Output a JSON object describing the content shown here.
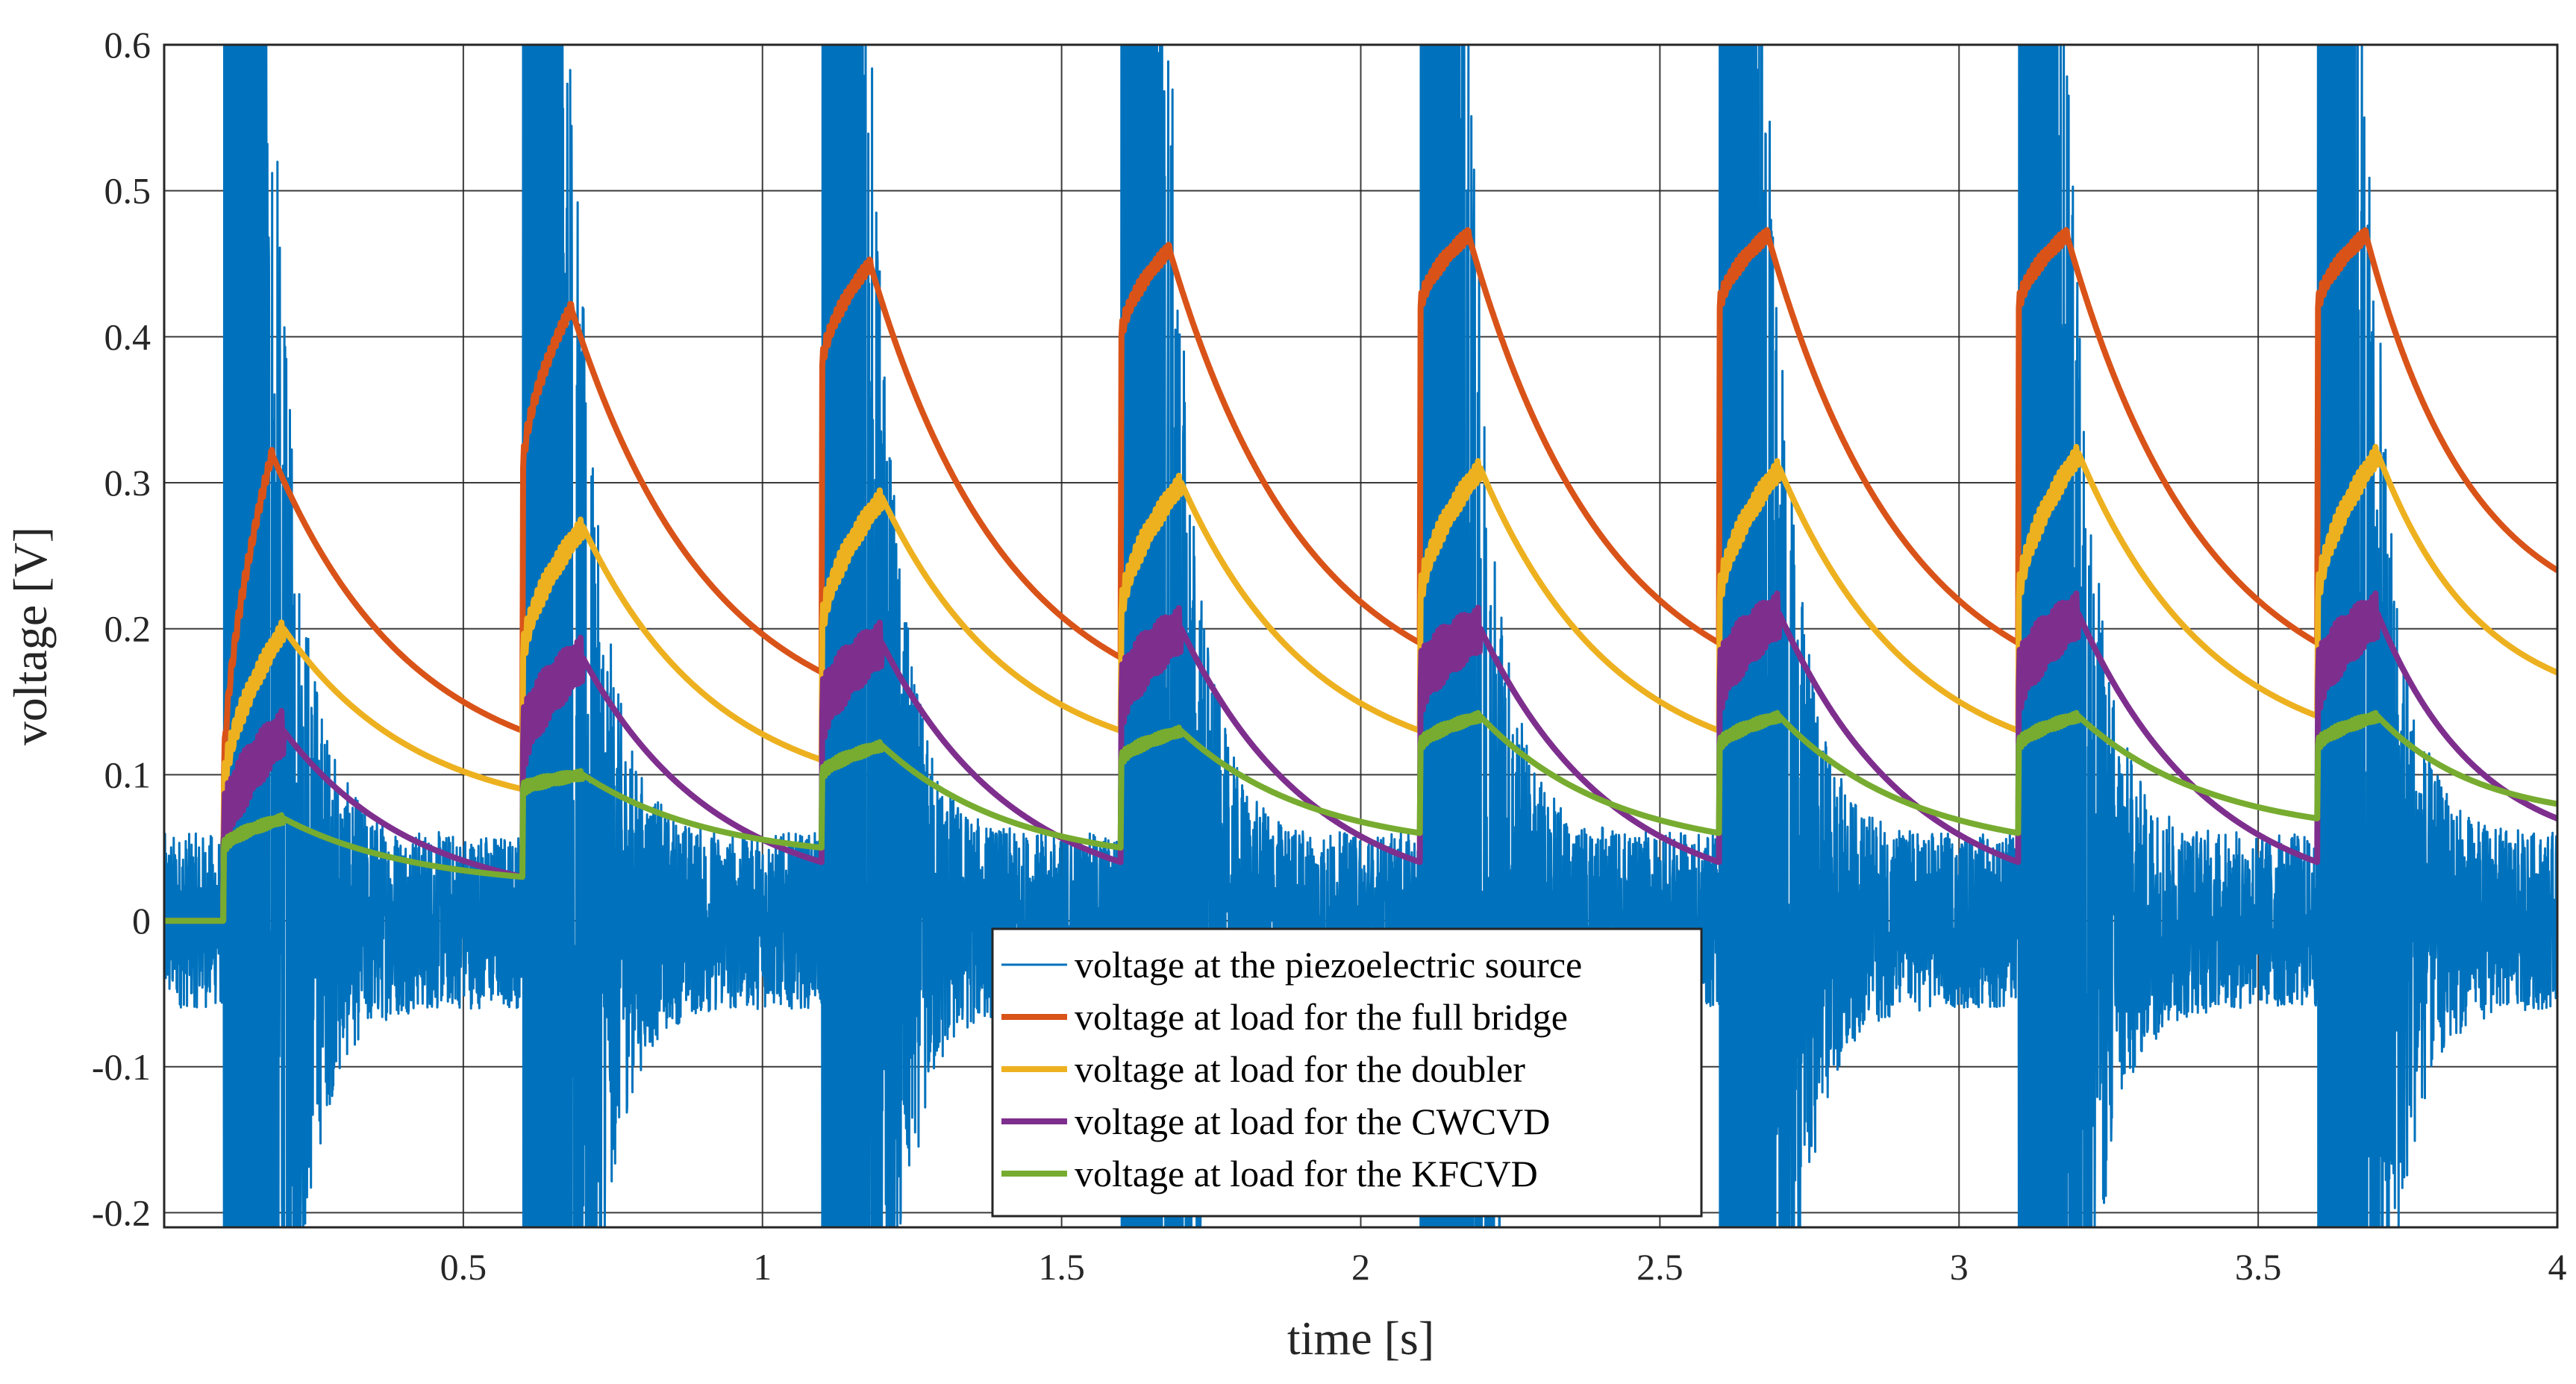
{
  "chart_data": {
    "type": "line",
    "title": "",
    "xlabel": "time [s]",
    "ylabel": "voltage [V]",
    "xlim": [
      0,
      4
    ],
    "ylim": [
      -0.21,
      0.6
    ],
    "grid": true,
    "legend_position": "bottom-center",
    "x_ticks": [
      0.5,
      1,
      1.5,
      2,
      2.5,
      3,
      3.5,
      4
    ],
    "x_tick_labels": [
      "0.5",
      "1",
      "1.5",
      "2",
      "2.5",
      "3",
      "3.5",
      "4"
    ],
    "y_ticks": [
      -0.2,
      -0.1,
      0,
      0.1,
      0.2,
      0.3,
      0.4,
      0.5,
      0.6
    ],
    "y_tick_labels": [
      "-0.2",
      "-0.1",
      "0",
      "0.1",
      "0.2",
      "0.3",
      "0.4",
      "0.5",
      "0.6"
    ],
    "excitation": {
      "pulse_start_times_s": [
        0.1,
        0.6,
        1.1,
        1.6,
        2.1,
        2.6,
        3.1,
        3.6
      ],
      "period_s": 0.5,
      "ringdown_window_s": 0.15,
      "source_clipped_above_V": 0.6,
      "source_clipped_below_V": -0.21
    },
    "series": [
      {
        "name": "voltage at the piezoelectric source",
        "color": "#0072BD",
        "kind": "oscillating",
        "pulse_start_times_s": [
          0.1,
          0.6,
          1.1,
          1.6,
          2.1,
          2.6,
          3.1,
          3.6
        ],
        "peak_envelope_V": [
          0.6,
          0.6,
          0.6,
          0.6,
          0.6,
          0.6,
          0.6,
          0.6
        ],
        "dc_level_V": 0,
        "residual_noise_amplitude_V": 0.06
      },
      {
        "name": "voltage at load for the full bridge",
        "color": "#D95319",
        "kind": "charge-decay",
        "start_s": 0.1,
        "initial_value_V": 0,
        "pulse_start_times_s": [
          0.1,
          0.6,
          1.1,
          1.6,
          2.1,
          2.6,
          3.1,
          3.6
        ],
        "step_to_V": [
          0.1,
          0.31,
          0.38,
          0.4,
          0.42,
          0.42,
          0.42,
          0.42
        ],
        "peak_times_s": [
          0.18,
          0.68,
          1.18,
          1.68,
          2.18,
          2.68,
          3.18,
          3.68
        ],
        "peak_values_V": [
          0.32,
          0.42,
          0.45,
          0.46,
          0.47,
          0.47,
          0.47,
          0.47
        ],
        "end_values_V": [
          0.13,
          0.17,
          0.18,
          0.19,
          0.19,
          0.19,
          0.19,
          0.24
        ],
        "ripple_V": 0.006
      },
      {
        "name": "voltage at load for the doubler",
        "color": "#EDB120",
        "kind": "charge-decay",
        "start_s": 0.1,
        "initial_value_V": 0,
        "pulse_start_times_s": [
          0.1,
          0.6,
          1.1,
          1.6,
          2.1,
          2.6,
          3.1,
          3.6
        ],
        "step_to_V": [
          0.09,
          0.18,
          0.2,
          0.21,
          0.22,
          0.22,
          0.22,
          0.22
        ],
        "peak_times_s": [
          0.2,
          0.7,
          1.2,
          1.7,
          2.2,
          2.7,
          3.2,
          3.7
        ],
        "peak_values_V": [
          0.2,
          0.27,
          0.29,
          0.3,
          0.31,
          0.31,
          0.32,
          0.32
        ],
        "end_values_V": [
          0.09,
          0.11,
          0.13,
          0.13,
          0.13,
          0.13,
          0.14,
          0.17
        ],
        "ripple_V": 0.01
      },
      {
        "name": "voltage at load for the CWCVD",
        "color": "#7E2F8E",
        "kind": "charge-decay",
        "start_s": 0.1,
        "initial_value_V": 0,
        "pulse_start_times_s": [
          0.1,
          0.6,
          1.1,
          1.6,
          2.1,
          2.6,
          3.1,
          3.6
        ],
        "step_to_V": [
          0.06,
          0.12,
          0.14,
          0.15,
          0.16,
          0.16,
          0.16,
          0.16
        ],
        "peak_times_s": [
          0.2,
          0.7,
          1.2,
          1.7,
          2.2,
          2.7,
          3.2,
          3.7
        ],
        "peak_values_V": [
          0.13,
          0.18,
          0.19,
          0.2,
          0.2,
          0.21,
          0.21,
          0.21
        ],
        "end_values_V": [
          0.03,
          0.04,
          0.04,
          0.04,
          0.04,
          0.04,
          0.04,
          0.07
        ],
        "ripple_V": 0.022
      },
      {
        "name": "voltage at load for the KFCVD",
        "color": "#77AC30",
        "kind": "charge-decay",
        "start_s": 0.1,
        "initial_value_V": 0,
        "pulse_start_times_s": [
          0.1,
          0.6,
          1.1,
          1.6,
          2.1,
          2.6,
          3.1,
          3.6
        ],
        "step_to_V": [
          0.05,
          0.09,
          0.1,
          0.11,
          0.12,
          0.12,
          0.12,
          0.12
        ],
        "peak_times_s": [
          0.2,
          0.7,
          1.2,
          1.7,
          2.2,
          2.7,
          3.2,
          3.7
        ],
        "peak_values_V": [
          0.07,
          0.1,
          0.12,
          0.13,
          0.14,
          0.14,
          0.14,
          0.14
        ],
        "end_values_V": [
          0.03,
          0.05,
          0.05,
          0.06,
          0.06,
          0.06,
          0.07,
          0.08
        ],
        "ripple_V": 0.004
      }
    ]
  }
}
